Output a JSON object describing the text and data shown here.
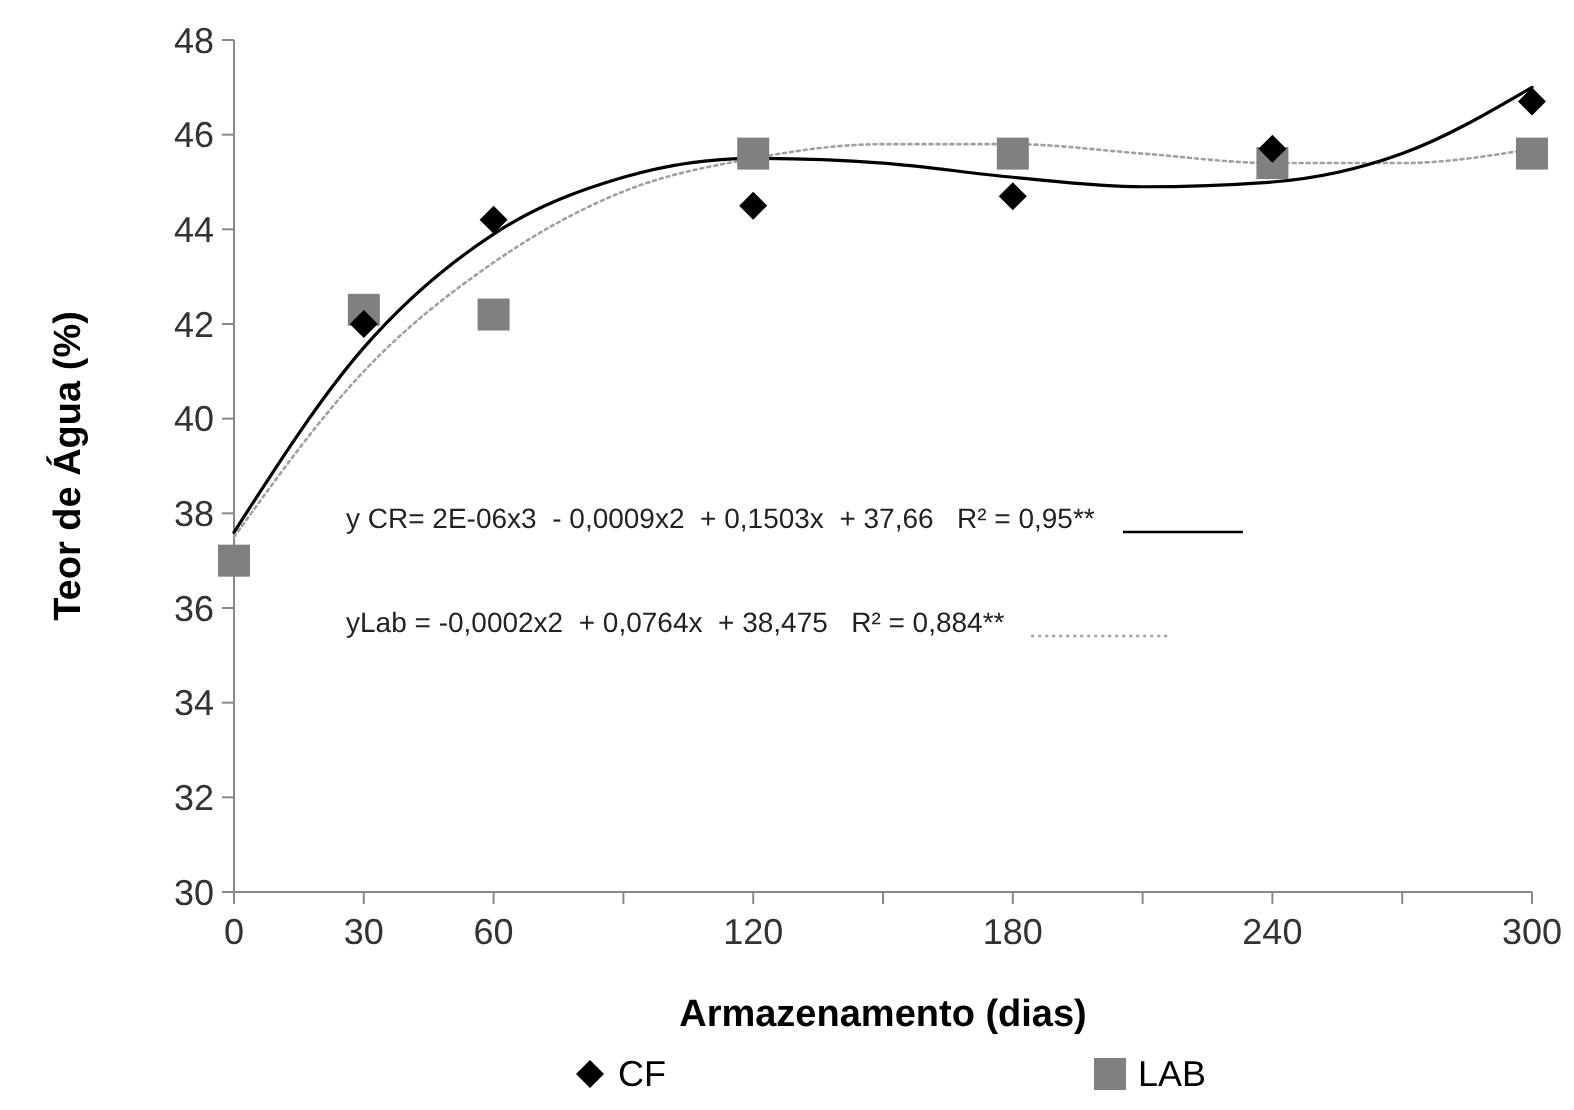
{
  "chart_data": {
    "type": "scatter",
    "xlabel": "Armazenamento (dias)",
    "ylabel": "Teor de Água (%)",
    "x": [
      0,
      30,
      60,
      120,
      180,
      240,
      300
    ],
    "series": [
      {
        "name": "CF",
        "color": "#000000",
        "marker": "diamond",
        "values": [
          null,
          42.0,
          44.2,
          44.5,
          44.7,
          45.7,
          46.7
        ]
      },
      {
        "name": "LAB",
        "color": "#808080",
        "marker": "square",
        "values": [
          37.0,
          42.3,
          42.2,
          45.6,
          45.6,
          45.4,
          45.6
        ]
      },
      {
        "type": "line",
        "color": "#000000",
        "line_style": "solid",
        "marker": "none",
        "x": [
          0,
          30,
          60,
          90,
          120,
          150,
          180,
          210,
          240,
          270,
          300
        ],
        "values": [
          37.6,
          41.5,
          43.9,
          45.1,
          45.5,
          45.4,
          45.1,
          44.9,
          45.0,
          45.6,
          47.0
        ]
      },
      {
        "type": "line",
        "color": "#a0a0a0",
        "line_style": "dotted",
        "marker": "none",
        "x": [
          0,
          30,
          60,
          90,
          120,
          150,
          180,
          210,
          240,
          270,
          300
        ],
        "values": [
          37.5,
          41.0,
          43.3,
          44.8,
          45.5,
          45.8,
          45.8,
          45.6,
          45.4,
          45.4,
          45.7
        ]
      }
    ],
    "annotations": [
      "y CR= 2E-06x3  - 0,0009x2  + 0,1503x  + 37,66   R² = 0,95**",
      "yLab = -0,0002x2  + 0,0764x  + 38,475   R² = 0,884**"
    ],
    "xlim": [
      0,
      300
    ],
    "xticks": [
      0,
      30,
      60,
      {
        "value": 90,
        "label": null
      },
      120,
      {
        "value": 150,
        "label": null
      },
      180,
      {
        "value": 210,
        "label": null
      },
      240,
      {
        "value": 270,
        "label": null
      },
      300
    ],
    "ylim": [
      30,
      48
    ],
    "yticks": [
      30,
      32,
      34,
      36,
      38,
      40,
      42,
      44,
      46,
      48
    ],
    "grid": false,
    "legend": "bottom"
  }
}
